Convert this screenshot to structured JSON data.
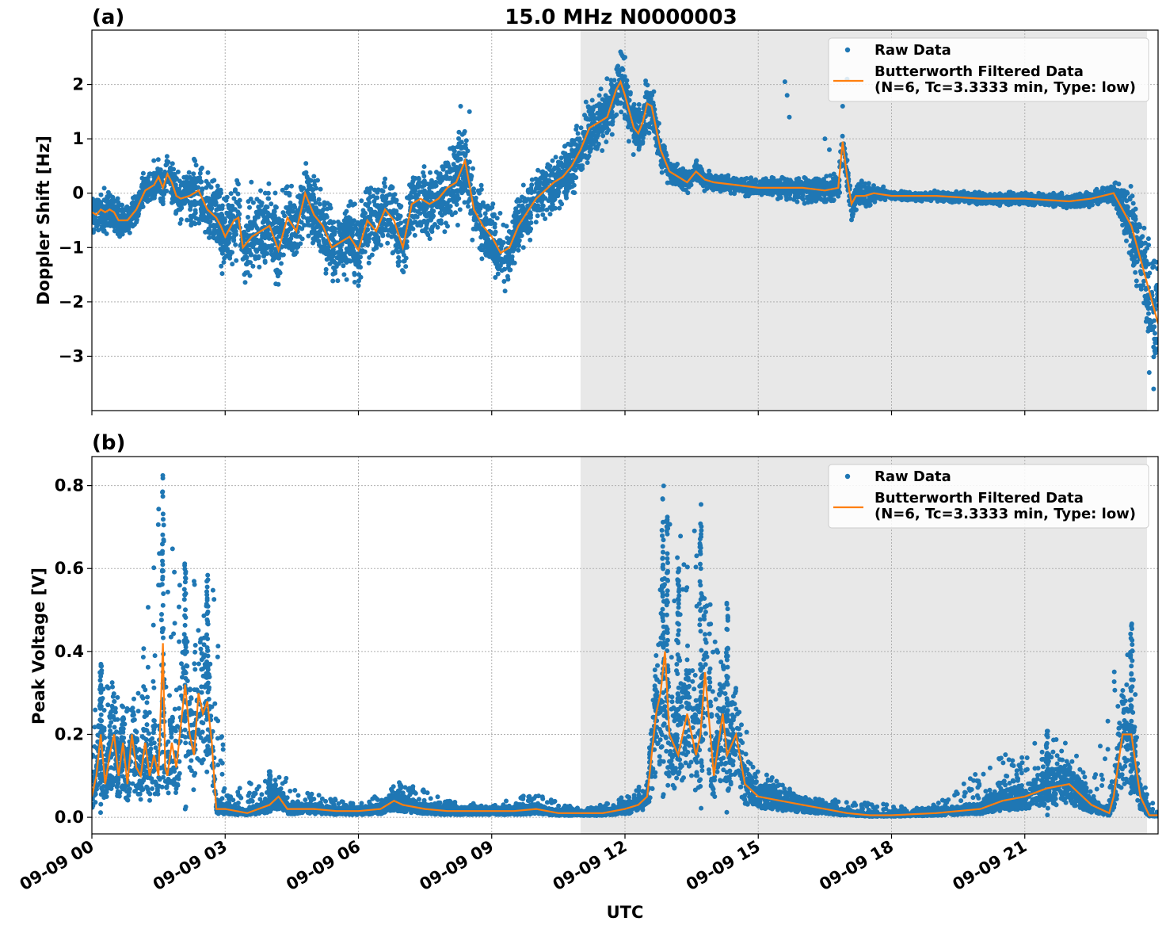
{
  "figure": {
    "title": "15.0 MHz N0000003",
    "xlabel": "UTC"
  },
  "chart_data": [
    {
      "panel_label": "(a)",
      "type": "scatter",
      "ylabel": "Doppler Shift [Hz]",
      "xlim_hours": [
        0,
        24
      ],
      "ylim": [
        -4.0,
        3.0
      ],
      "yticks": [
        -3,
        -2,
        -1,
        0,
        1,
        2
      ],
      "ytick_labels": [
        "−3",
        "−2",
        "−1",
        "0",
        "1",
        "2"
      ],
      "grid": true,
      "legend": {
        "placement": "top-right",
        "raw_label": "Raw Data",
        "filtered_label_1": "Butterworth Filtered Data",
        "filtered_label_2": "(N=6, Tc=3.3333 min, Type: low)"
      },
      "shaded_region_hours": [
        11.0,
        23.75
      ],
      "series_filtered": {
        "x": [
          0,
          0.1,
          0.2,
          0.3,
          0.4,
          0.5,
          0.6,
          0.8,
          1.0,
          1.2,
          1.4,
          1.5,
          1.6,
          1.7,
          1.8,
          1.9,
          2.0,
          2.2,
          2.4,
          2.6,
          2.8,
          2.9,
          3.0,
          3.2,
          3.3,
          3.4,
          3.6,
          3.8,
          4.0,
          4.2,
          4.4,
          4.6,
          4.8,
          5.0,
          5.2,
          5.4,
          5.6,
          5.8,
          6.0,
          6.2,
          6.4,
          6.6,
          6.8,
          7.0,
          7.2,
          7.4,
          7.6,
          7.8,
          8.0,
          8.2,
          8.4,
          8.6,
          8.8,
          9.0,
          9.2,
          9.4,
          9.6,
          9.8,
          10.0,
          10.2,
          10.4,
          10.6,
          10.8,
          11.0,
          11.2,
          11.4,
          11.6,
          11.8,
          11.9,
          12.0,
          12.1,
          12.2,
          12.3,
          12.4,
          12.5,
          12.6,
          12.8,
          13.0,
          13.2,
          13.4,
          13.6,
          13.8,
          14.0,
          14.5,
          15.0,
          15.5,
          16.0,
          16.5,
          16.8,
          16.9,
          17.0,
          17.1,
          17.2,
          17.4,
          17.6,
          18.0,
          19.0,
          20.0,
          21.0,
          22.0,
          22.5,
          23.0,
          23.2,
          23.4,
          23.6,
          23.8,
          24.0
        ],
        "y": [
          -0.35,
          -0.4,
          -0.3,
          -0.35,
          -0.3,
          -0.35,
          -0.5,
          -0.5,
          -0.3,
          0.05,
          0.15,
          0.3,
          0.1,
          0.35,
          0.2,
          -0.05,
          -0.1,
          -0.05,
          0.05,
          -0.3,
          -0.45,
          -0.6,
          -0.8,
          -0.5,
          -0.45,
          -1.0,
          -0.8,
          -0.7,
          -0.6,
          -1.05,
          -0.45,
          -0.7,
          0.0,
          -0.4,
          -0.6,
          -1.0,
          -0.9,
          -0.8,
          -1.05,
          -0.5,
          -0.7,
          -0.3,
          -0.5,
          -1.0,
          -0.2,
          -0.1,
          -0.2,
          -0.1,
          0.1,
          0.2,
          0.6,
          -0.3,
          -0.6,
          -0.8,
          -1.1,
          -1.0,
          -0.6,
          -0.35,
          -0.1,
          0.05,
          0.2,
          0.3,
          0.5,
          0.8,
          1.2,
          1.3,
          1.4,
          1.9,
          2.05,
          1.8,
          1.5,
          1.2,
          1.1,
          1.3,
          1.65,
          1.6,
          0.8,
          0.4,
          0.3,
          0.2,
          0.4,
          0.25,
          0.2,
          0.15,
          0.1,
          0.1,
          0.1,
          0.05,
          0.1,
          0.95,
          0.3,
          -0.2,
          -0.05,
          -0.05,
          0.0,
          -0.05,
          -0.05,
          -0.1,
          -0.1,
          -0.15,
          -0.1,
          0.0,
          -0.3,
          -0.6,
          -1.2,
          -1.8,
          -2.4
        ]
      },
      "series_raw_envelope": {
        "x": [
          0,
          1,
          2,
          3,
          4,
          5,
          6,
          7,
          8,
          9,
          10,
          11,
          12,
          12.5,
          13,
          14,
          15,
          16,
          17,
          18,
          19,
          20,
          21,
          22,
          23,
          23.5,
          24
        ],
        "spread": [
          0.25,
          0.2,
          0.3,
          0.5,
          0.5,
          0.45,
          0.45,
          0.4,
          0.45,
          0.4,
          0.3,
          0.35,
          0.35,
          0.3,
          0.15,
          0.1,
          0.1,
          0.15,
          0.2,
          0.05,
          0.06,
          0.07,
          0.07,
          0.08,
          0.12,
          0.5,
          0.8
        ]
      }
    },
    {
      "panel_label": "(b)",
      "type": "scatter",
      "ylabel": "Peak Voltage [V]",
      "xlim_hours": [
        0,
        24
      ],
      "ylim": [
        -0.04,
        0.87
      ],
      "yticks": [
        0.0,
        0.2,
        0.4,
        0.6,
        0.8
      ],
      "ytick_labels": [
        "0.0",
        "0.2",
        "0.4",
        "0.6",
        "0.8"
      ],
      "xtick_labels": [
        "09-09 00",
        "09-09 03",
        "09-09 06",
        "09-09 09",
        "09-09 12",
        "09-09 15",
        "09-09 18",
        "09-09 21"
      ],
      "xticks_hours": [
        0,
        3,
        6,
        9,
        12,
        15,
        18,
        21
      ],
      "grid": true,
      "legend": {
        "placement": "top-right",
        "raw_label": "Raw Data",
        "filtered_label_1": "Butterworth Filtered Data",
        "filtered_label_2": "(N=6, Tc=3.3333 min, Type: low)"
      },
      "shaded_region_hours": [
        11.0,
        23.75
      ],
      "series_filtered": {
        "x": [
          0,
          0.1,
          0.2,
          0.3,
          0.4,
          0.5,
          0.6,
          0.7,
          0.8,
          0.9,
          1.0,
          1.1,
          1.2,
          1.3,
          1.4,
          1.5,
          1.6,
          1.65,
          1.7,
          1.8,
          1.9,
          2.0,
          2.1,
          2.2,
          2.3,
          2.4,
          2.5,
          2.6,
          2.7,
          2.8,
          3.0,
          3.5,
          4.0,
          4.2,
          4.4,
          5.0,
          5.5,
          6.0,
          6.5,
          6.8,
          7.0,
          7.5,
          8.0,
          8.5,
          9.0,
          9.5,
          10.0,
          10.5,
          11.0,
          11.5,
          12.0,
          12.3,
          12.5,
          12.7,
          12.8,
          12.9,
          13.0,
          13.2,
          13.4,
          13.6,
          13.7,
          13.8,
          14.0,
          14.2,
          14.3,
          14.5,
          14.7,
          15.0,
          15.5,
          16.0,
          16.5,
          17.0,
          17.5,
          18.0,
          19.0,
          20.0,
          20.5,
          21.0,
          21.5,
          22.0,
          22.5,
          22.9,
          23.0,
          23.2,
          23.4,
          23.6,
          23.8,
          24.0
        ],
        "y": [
          0.05,
          0.1,
          0.2,
          0.08,
          0.15,
          0.2,
          0.1,
          0.18,
          0.08,
          0.2,
          0.12,
          0.1,
          0.18,
          0.1,
          0.15,
          0.1,
          0.42,
          0.12,
          0.1,
          0.18,
          0.12,
          0.22,
          0.32,
          0.2,
          0.15,
          0.3,
          0.25,
          0.28,
          0.18,
          0.02,
          0.02,
          0.01,
          0.03,
          0.05,
          0.02,
          0.02,
          0.015,
          0.015,
          0.02,
          0.04,
          0.03,
          0.02,
          0.015,
          0.015,
          0.015,
          0.015,
          0.02,
          0.01,
          0.01,
          0.01,
          0.02,
          0.03,
          0.05,
          0.25,
          0.3,
          0.4,
          0.2,
          0.15,
          0.25,
          0.15,
          0.2,
          0.35,
          0.1,
          0.25,
          0.15,
          0.2,
          0.08,
          0.05,
          0.04,
          0.03,
          0.02,
          0.01,
          0.005,
          0.005,
          0.01,
          0.02,
          0.04,
          0.05,
          0.07,
          0.08,
          0.03,
          0.01,
          0.05,
          0.2,
          0.2,
          0.05,
          0.005,
          0.005
        ]
      },
      "series_raw_envelope": {
        "x": [
          0,
          1,
          1.6,
          2,
          2.5,
          2.8,
          3,
          4,
          5,
          6,
          7,
          8,
          9,
          10,
          11,
          12,
          12.5,
          12.9,
          13.5,
          14,
          14.5,
          15,
          16,
          17,
          18,
          19,
          20,
          21,
          22,
          22.5,
          23,
          23.4,
          23.6,
          24
        ],
        "peak": [
          0.35,
          0.3,
          0.83,
          0.6,
          0.55,
          0.6,
          0.05,
          0.12,
          0.06,
          0.03,
          0.09,
          0.04,
          0.03,
          0.06,
          0.02,
          0.05,
          0.1,
          0.8,
          0.78,
          0.52,
          0.3,
          0.12,
          0.05,
          0.04,
          0.03,
          0.03,
          0.12,
          0.18,
          0.2,
          0.06,
          0.35,
          0.47,
          0.1,
          0.01
        ]
      }
    }
  ]
}
